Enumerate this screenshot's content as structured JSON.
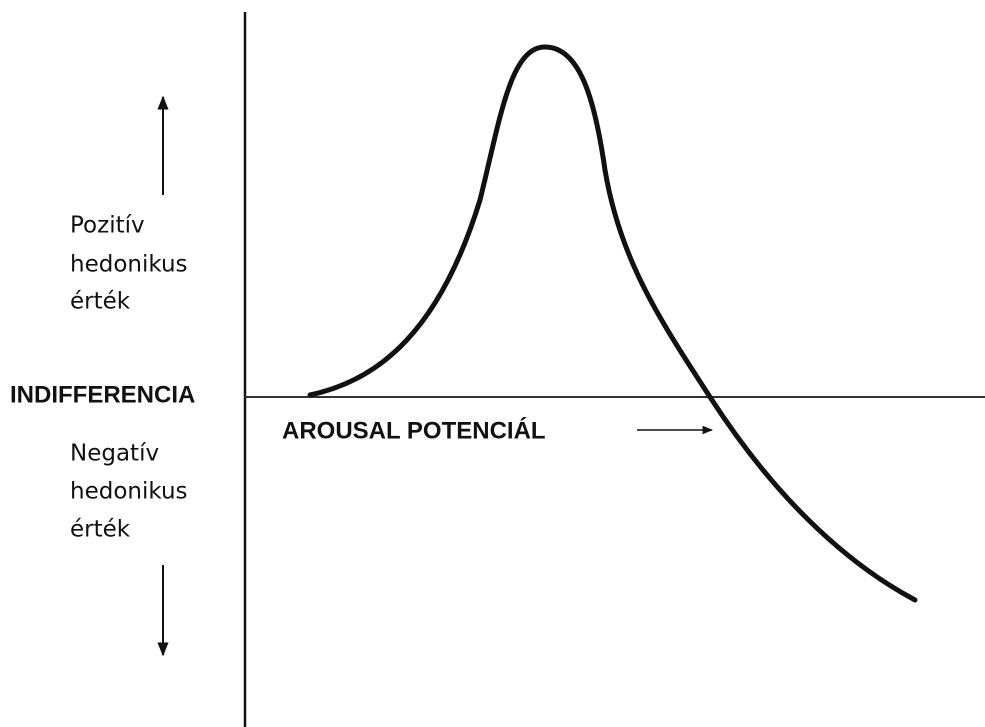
{
  "labels": {
    "positive": [
      "Pozitív",
      "hedonikus",
      "érték"
    ],
    "indifference": "INDIFFERENCIA",
    "x_axis": "AROUSAL POTENCIÁL",
    "negative": [
      "Negatív",
      "hedonikus",
      "érték"
    ]
  }
}
